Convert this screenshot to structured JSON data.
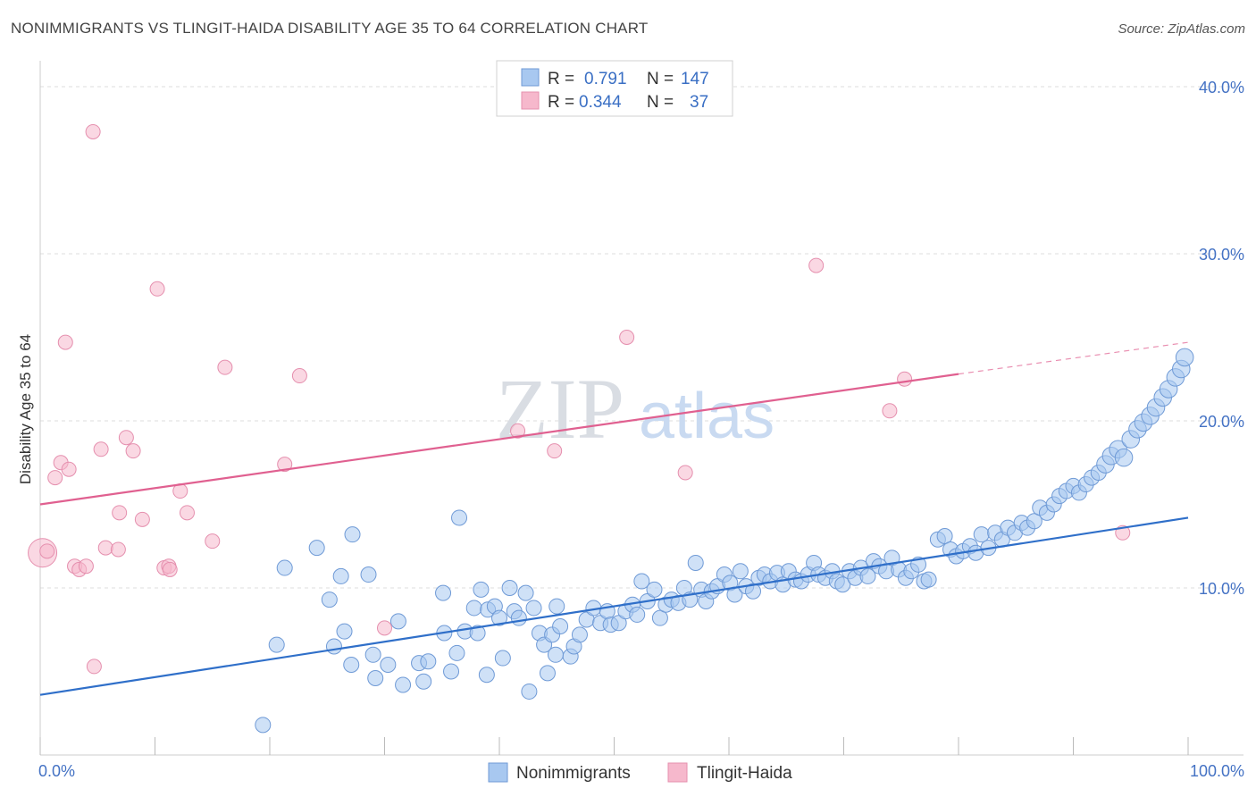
{
  "title": "NONIMMIGRANTS VS TLINGIT-HAIDA DISABILITY AGE 35 TO 64 CORRELATION CHART",
  "source": "Source: ZipAtlas.com",
  "watermark": {
    "zip": "ZIP",
    "atlas": "atlas"
  },
  "chart_data": {
    "type": "scatter",
    "ylabel": "Disability Age 35 to 64",
    "xlim": [
      0,
      100
    ],
    "ylim": [
      0,
      40
    ],
    "x_tick_labels": [
      "0.0%",
      "100.0%"
    ],
    "y_ticks": [
      10,
      20,
      30,
      40
    ],
    "y_tick_labels": [
      "10.0%",
      "20.0%",
      "30.0%",
      "40.0%"
    ],
    "legend": {
      "entries": [
        {
          "name": "Nonimmigrants",
          "r_label": "R =",
          "r_value": "0.791",
          "n_label": "N =",
          "n_value": "147"
        },
        {
          "name": "Tlingit-Haida",
          "r_label": "R =",
          "r_value": "0.344",
          "n_label": "N =",
          "n_value": "37"
        }
      ]
    },
    "colors": {
      "blue_fill": "#a8c8f0",
      "blue_stroke": "#6f9ad6",
      "blue_line": "#2f6fc9",
      "pink_fill": "#f6b8cc",
      "pink_stroke": "#e58fae",
      "pink_line": "#e06090"
    },
    "series": [
      {
        "name": "Nonimmigrants",
        "trend": {
          "x0": 0,
          "y0": 3.6,
          "x1": 100,
          "y1": 14.2
        },
        "points": [
          [
            19.4,
            1.8,
            1
          ],
          [
            21.3,
            11.2,
            1
          ],
          [
            24.1,
            12.4,
            1
          ],
          [
            25.2,
            9.3,
            1
          ],
          [
            25.6,
            6.5,
            1
          ],
          [
            26.2,
            10.7,
            1
          ],
          [
            26.5,
            7.4,
            1
          ],
          [
            27.1,
            5.4,
            1
          ],
          [
            27.2,
            13.2,
            1
          ],
          [
            28.6,
            10.8,
            1
          ],
          [
            29.0,
            6.0,
            1
          ],
          [
            29.2,
            4.6,
            1
          ],
          [
            30.3,
            5.4,
            1
          ],
          [
            31.2,
            8.0,
            1
          ],
          [
            33.0,
            5.5,
            1
          ],
          [
            33.8,
            5.6,
            1
          ],
          [
            35.1,
            9.7,
            1
          ],
          [
            35.2,
            7.3,
            1
          ],
          [
            36.3,
            6.1,
            1
          ],
          [
            36.5,
            14.2,
            1
          ],
          [
            37.0,
            7.4,
            1
          ],
          [
            37.8,
            8.8,
            1
          ],
          [
            38.1,
            7.3,
            1
          ],
          [
            38.4,
            9.9,
            1
          ],
          [
            39.0,
            8.7,
            1
          ],
          [
            39.6,
            8.9,
            1
          ],
          [
            40.0,
            8.2,
            1
          ],
          [
            40.3,
            5.8,
            1
          ],
          [
            40.9,
            10.0,
            1
          ],
          [
            41.3,
            8.6,
            1
          ],
          [
            41.7,
            8.2,
            1
          ],
          [
            42.3,
            9.7,
            1
          ],
          [
            43.0,
            8.8,
            1
          ],
          [
            43.5,
            7.3,
            1
          ],
          [
            43.9,
            6.6,
            1
          ],
          [
            44.2,
            4.9,
            1
          ],
          [
            44.6,
            7.2,
            1
          ],
          [
            45.0,
            8.9,
            1
          ],
          [
            45.3,
            7.7,
            1
          ],
          [
            46.2,
            5.9,
            1
          ],
          [
            46.5,
            6.5,
            1
          ],
          [
            47.0,
            7.2,
            1
          ],
          [
            47.6,
            8.1,
            1
          ],
          [
            48.2,
            8.8,
            1
          ],
          [
            48.8,
            7.9,
            1
          ],
          [
            49.4,
            8.6,
            1
          ],
          [
            49.7,
            7.8,
            1
          ],
          [
            50.4,
            7.9,
            1
          ],
          [
            51.0,
            8.6,
            1
          ],
          [
            51.6,
            9.0,
            1
          ],
          [
            52.0,
            8.4,
            1
          ],
          [
            52.4,
            10.4,
            1
          ],
          [
            52.9,
            9.2,
            1
          ],
          [
            53.5,
            9.9,
            1
          ],
          [
            54.0,
            8.2,
            1
          ],
          [
            54.5,
            9.0,
            1
          ],
          [
            55.0,
            9.3,
            1
          ],
          [
            55.6,
            9.1,
            1
          ],
          [
            56.1,
            10.0,
            1
          ],
          [
            56.6,
            9.3,
            1
          ],
          [
            57.1,
            11.5,
            1
          ],
          [
            57.6,
            9.9,
            1
          ],
          [
            58.0,
            9.2,
            1
          ],
          [
            58.5,
            9.8,
            1
          ],
          [
            59.0,
            10.1,
            1
          ],
          [
            59.6,
            10.8,
            1
          ],
          [
            60.1,
            10.3,
            1
          ],
          [
            60.5,
            9.6,
            1
          ],
          [
            61.0,
            11.0,
            1
          ],
          [
            61.5,
            10.1,
            1
          ],
          [
            62.1,
            9.8,
            1
          ],
          [
            62.6,
            10.6,
            1
          ],
          [
            63.1,
            10.8,
            1
          ],
          [
            63.6,
            10.4,
            1
          ],
          [
            64.2,
            10.9,
            1
          ],
          [
            64.7,
            10.2,
            1
          ],
          [
            65.2,
            11.0,
            1
          ],
          [
            65.8,
            10.5,
            1
          ],
          [
            66.3,
            10.4,
            1
          ],
          [
            66.9,
            10.8,
            1
          ],
          [
            67.4,
            11.5,
            1
          ],
          [
            67.8,
            10.8,
            1
          ],
          [
            68.4,
            10.6,
            1
          ],
          [
            69.0,
            11.0,
            1
          ],
          [
            69.4,
            10.4,
            1
          ],
          [
            69.9,
            10.2,
            1
          ],
          [
            70.5,
            11.0,
            1
          ],
          [
            71.0,
            10.6,
            1
          ],
          [
            71.5,
            11.2,
            1
          ],
          [
            72.1,
            10.7,
            1
          ],
          [
            72.6,
            11.6,
            1
          ],
          [
            73.1,
            11.3,
            1
          ],
          [
            73.7,
            11.0,
            1
          ],
          [
            74.2,
            11.8,
            1
          ],
          [
            74.8,
            11.1,
            1
          ],
          [
            75.4,
            10.6,
            1
          ],
          [
            75.9,
            11.0,
            1
          ],
          [
            76.5,
            11.4,
            1
          ],
          [
            77.0,
            10.4,
            1
          ],
          [
            77.4,
            10.5,
            1
          ],
          [
            78.2,
            12.9,
            1
          ],
          [
            78.8,
            13.1,
            1
          ],
          [
            79.3,
            12.3,
            1
          ],
          [
            79.8,
            11.9,
            1
          ],
          [
            80.4,
            12.2,
            1
          ],
          [
            81.0,
            12.5,
            1
          ],
          [
            81.5,
            12.1,
            1
          ],
          [
            82.0,
            13.2,
            1
          ],
          [
            82.6,
            12.4,
            1
          ],
          [
            83.2,
            13.3,
            1
          ],
          [
            83.8,
            12.9,
            1
          ],
          [
            84.3,
            13.6,
            1
          ],
          [
            84.9,
            13.3,
            1
          ],
          [
            85.5,
            13.9,
            1
          ],
          [
            86.0,
            13.6,
            1
          ],
          [
            86.6,
            14.0,
            1
          ],
          [
            87.1,
            14.8,
            1
          ],
          [
            87.7,
            14.5,
            1
          ],
          [
            88.3,
            15.0,
            1
          ],
          [
            88.8,
            15.5,
            1
          ],
          [
            89.4,
            15.8,
            1
          ],
          [
            90.0,
            16.1,
            1
          ],
          [
            90.5,
            15.7,
            1
          ],
          [
            91.1,
            16.2,
            1
          ],
          [
            91.6,
            16.6,
            1
          ],
          [
            92.2,
            16.9,
            1
          ],
          [
            92.8,
            17.4,
            1
          ],
          [
            93.3,
            17.9,
            1
          ],
          [
            93.9,
            18.3,
            1
          ],
          [
            94.4,
            17.8,
            1
          ],
          [
            95.0,
            18.9,
            1
          ],
          [
            95.6,
            19.5,
            1
          ],
          [
            96.1,
            19.9,
            1
          ],
          [
            96.7,
            20.3,
            1
          ],
          [
            97.2,
            20.8,
            1
          ],
          [
            97.8,
            21.4,
            1
          ],
          [
            98.3,
            21.9,
            1
          ],
          [
            98.9,
            22.6,
            1
          ],
          [
            99.4,
            23.1,
            1
          ],
          [
            99.7,
            23.8,
            1
          ],
          [
            20.6,
            6.6,
            1
          ],
          [
            31.6,
            4.2,
            1
          ],
          [
            33.4,
            4.4,
            1
          ],
          [
            35.8,
            5.0,
            1
          ],
          [
            38.9,
            4.8,
            1
          ],
          [
            42.6,
            3.8,
            1
          ],
          [
            44.9,
            6.0,
            1
          ]
        ]
      },
      {
        "name": "Tlingit-Haida",
        "trend": {
          "x0": 0,
          "y0": 15.0,
          "x1": 80,
          "y1": 22.8,
          "dash_x1": 100,
          "dash_y1": 24.7
        },
        "points": [
          [
            0.2,
            12.1,
            2
          ],
          [
            0.6,
            12.2,
            1
          ],
          [
            1.3,
            16.6,
            1
          ],
          [
            1.8,
            17.5,
            1
          ],
          [
            2.2,
            24.7,
            1
          ],
          [
            2.5,
            17.1,
            1
          ],
          [
            3.0,
            11.3,
            1
          ],
          [
            3.4,
            11.1,
            1
          ],
          [
            4.0,
            11.3,
            1
          ],
          [
            4.6,
            37.3,
            1
          ],
          [
            4.7,
            5.3,
            1
          ],
          [
            5.3,
            18.3,
            1
          ],
          [
            5.7,
            12.4,
            1
          ],
          [
            6.8,
            12.3,
            1
          ],
          [
            6.9,
            14.5,
            1
          ],
          [
            7.5,
            19.0,
            1
          ],
          [
            8.1,
            18.2,
            1
          ],
          [
            8.9,
            14.1,
            1
          ],
          [
            10.2,
            27.9,
            1
          ],
          [
            10.8,
            11.2,
            1
          ],
          [
            11.2,
            11.3,
            1
          ],
          [
            11.3,
            11.1,
            1
          ],
          [
            12.2,
            15.8,
            1
          ],
          [
            12.8,
            14.5,
            1
          ],
          [
            15.0,
            12.8,
            1
          ],
          [
            16.1,
            23.2,
            1
          ],
          [
            21.3,
            17.4,
            1
          ],
          [
            22.6,
            22.7,
            1
          ],
          [
            30.0,
            7.6,
            1
          ],
          [
            41.6,
            19.4,
            1
          ],
          [
            44.8,
            18.2,
            1
          ],
          [
            51.1,
            25.0,
            1
          ],
          [
            56.2,
            16.9,
            1
          ],
          [
            67.6,
            29.3,
            1
          ],
          [
            74.0,
            20.6,
            1
          ],
          [
            75.3,
            22.5,
            1
          ],
          [
            94.3,
            13.3,
            1
          ]
        ]
      }
    ]
  }
}
